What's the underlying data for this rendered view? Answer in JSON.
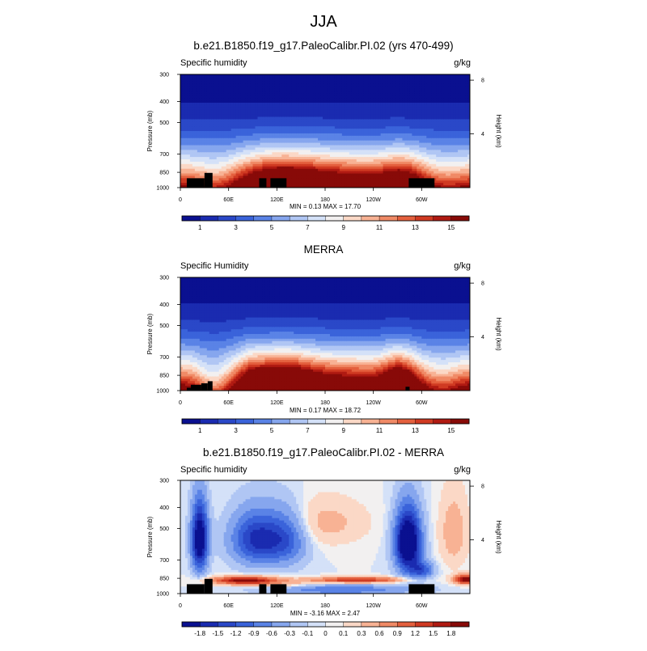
{
  "page_title": "JJA",
  "palettes": {
    "full": [
      "#0a1090",
      "#1a2bb0",
      "#2a48c8",
      "#3a63da",
      "#5a83e6",
      "#86a6ee",
      "#b0c6f4",
      "#d4e1f8",
      "#f2f0f0",
      "#fbd8c6",
      "#f8b294",
      "#f08a66",
      "#e4603e",
      "#d03a22",
      "#b01a12",
      "#880a08"
    ],
    "diff": [
      "#0a1090",
      "#1a2bb0",
      "#2a48c8",
      "#3a63da",
      "#5a83e6",
      "#86a6ee",
      "#b0c6f4",
      "#d4e1f8",
      "#f2f0f0",
      "#fbd8c6",
      "#f8b294",
      "#f08a66",
      "#e4603e",
      "#d03a22",
      "#b01a12",
      "#880a08"
    ],
    "terrain": "#000000"
  },
  "chart_data": [
    {
      "type": "heatmap",
      "title": "b.e21.B1850.f19_g17.PaleoCalibr.PI.02 (yrs 470-499)",
      "left_label": "Specific humidity",
      "units": "g/kg",
      "ylabel": "Pressure (mb)",
      "y2label": "Height (km)",
      "yticks": [
        300,
        400,
        500,
        700,
        850,
        1000
      ],
      "ylim": [
        300,
        1000
      ],
      "y2ticks": [
        {
          "value": 4,
          "label": "4"
        },
        {
          "value": 8,
          "label": "8"
        }
      ],
      "xticks": [
        {
          "lon": 0,
          "label": "0"
        },
        {
          "lon": 60,
          "label": "60E"
        },
        {
          "lon": 120,
          "label": "120E"
        },
        {
          "lon": 180,
          "label": "180"
        },
        {
          "lon": 240,
          "label": "120W"
        },
        {
          "lon": 300,
          "label": "60W"
        }
      ],
      "xlim": [
        0,
        360
      ],
      "stats": "MIN =   0.13  MAX =  17.70",
      "min": 0.13,
      "max": 17.7,
      "colorbar": {
        "palette": "full",
        "labels": [
          "1",
          "3",
          "5",
          "7",
          "9",
          "11",
          "13",
          "15"
        ],
        "range": [
          0,
          16
        ]
      },
      "field": "model",
      "terrain": [
        {
          "lon0": 8,
          "lon1": 30,
          "p": 905
        },
        {
          "lon0": 30,
          "lon1": 40,
          "p": 855
        },
        {
          "lon0": 98,
          "lon1": 107,
          "p": 905
        },
        {
          "lon0": 112,
          "lon1": 132,
          "p": 905
        },
        {
          "lon0": 284,
          "lon1": 316,
          "p": 905
        }
      ]
    },
    {
      "type": "heatmap",
      "title": "MERRA",
      "left_label": "Specific Humidity",
      "units": "g/kg",
      "ylabel": "Pressure (mb)",
      "y2label": "Height (km)",
      "yticks": [
        300,
        400,
        500,
        700,
        850,
        1000
      ],
      "ylim": [
        300,
        1000
      ],
      "y2ticks": [
        {
          "value": 4,
          "label": "4"
        },
        {
          "value": 8,
          "label": "8"
        }
      ],
      "xticks": [
        {
          "lon": 0,
          "label": "0"
        },
        {
          "lon": 60,
          "label": "60E"
        },
        {
          "lon": 120,
          "label": "120E"
        },
        {
          "lon": 180,
          "label": "180"
        },
        {
          "lon": 240,
          "label": "120W"
        },
        {
          "lon": 300,
          "label": "60W"
        }
      ],
      "xlim": [
        0,
        360
      ],
      "stats": "MIN =   0.17  MAX =  18.72",
      "min": 0.17,
      "max": 18.72,
      "colorbar": {
        "palette": "full",
        "labels": [
          "1",
          "3",
          "5",
          "7",
          "9",
          "11",
          "13",
          "15"
        ],
        "range": [
          0,
          16
        ]
      },
      "field": "obs",
      "terrain": [
        {
          "lon0": 8,
          "lon1": 13,
          "p": 970
        },
        {
          "lon0": 13,
          "lon1": 26,
          "p": 940
        },
        {
          "lon0": 26,
          "lon1": 34,
          "p": 925
        },
        {
          "lon0": 34,
          "lon1": 40,
          "p": 905
        },
        {
          "lon0": 280,
          "lon1": 285,
          "p": 960
        }
      ]
    },
    {
      "type": "heatmap",
      "title": "b.e21.B1850.f19_g17.PaleoCalibr.PI.02 - MERRA",
      "left_label": "Specific humidity",
      "units": "g/kg",
      "ylabel": "Pressure (mb)",
      "y2label": "Height (km)",
      "yticks": [
        300,
        400,
        500,
        700,
        850,
        1000
      ],
      "ylim": [
        300,
        1000
      ],
      "y2ticks": [
        {
          "value": 4,
          "label": "4"
        },
        {
          "value": 8,
          "label": "8"
        }
      ],
      "xticks": [
        {
          "lon": 0,
          "label": "0"
        },
        {
          "lon": 60,
          "label": "60E"
        },
        {
          "lon": 120,
          "label": "120E"
        },
        {
          "lon": 180,
          "label": "180"
        },
        {
          "lon": 240,
          "label": "120W"
        },
        {
          "lon": 300,
          "label": "60W"
        }
      ],
      "xlim": [
        0,
        360
      ],
      "stats": "MIN =  -3.16  MAX =   2.47",
      "min": -3.16,
      "max": 2.47,
      "colorbar": {
        "palette": "diff",
        "labels": [
          "-1.8",
          "-1.5",
          "-1.2",
          "-0.9",
          "-0.6",
          "-0.3",
          "-0.1",
          "0",
          "0.1",
          "0.3",
          "0.6",
          "0.9",
          "1.2",
          "1.5",
          "1.8"
        ],
        "levels": [
          -1.8,
          -1.5,
          -1.2,
          -0.9,
          -0.6,
          -0.3,
          -0.1,
          0,
          0.1,
          0.3,
          0.6,
          0.9,
          1.2,
          1.5,
          1.8
        ]
      },
      "field": "diff",
      "terrain": [
        {
          "lon0": 8,
          "lon1": 30,
          "p": 905
        },
        {
          "lon0": 30,
          "lon1": 40,
          "p": 855
        },
        {
          "lon0": 98,
          "lon1": 107,
          "p": 905
        },
        {
          "lon0": 112,
          "lon1": 132,
          "p": 905
        },
        {
          "lon0": 284,
          "lon1": 316,
          "p": 905
        }
      ]
    }
  ]
}
